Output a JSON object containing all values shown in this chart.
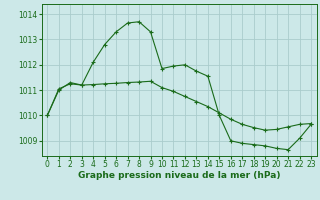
{
  "background_color": "#cce8e8",
  "grid_color": "#aacccc",
  "line_color": "#1a6b1a",
  "marker_color": "#1a6b1a",
  "title": "Graphe pression niveau de la mer (hPa)",
  "title_fontsize": 6.5,
  "tick_fontsize": 5.5,
  "xlim": [
    -0.5,
    23.5
  ],
  "ylim": [
    1008.4,
    1014.4
  ],
  "yticks": [
    1009,
    1010,
    1011,
    1012,
    1013,
    1014
  ],
  "xticks": [
    0,
    1,
    2,
    3,
    4,
    5,
    6,
    7,
    8,
    9,
    10,
    11,
    12,
    13,
    14,
    15,
    16,
    17,
    18,
    19,
    20,
    21,
    22,
    23
  ],
  "series1_x": [
    0,
    1,
    2,
    3,
    4,
    5,
    6,
    7,
    8,
    9,
    10,
    11,
    12,
    13,
    14,
    15,
    16,
    17,
    18,
    19,
    20,
    21,
    22,
    23
  ],
  "series1_y": [
    1010.0,
    1011.0,
    1011.3,
    1011.2,
    1012.1,
    1012.8,
    1013.3,
    1013.65,
    1013.7,
    1013.3,
    1011.85,
    1011.95,
    1012.0,
    1011.75,
    1011.55,
    1010.0,
    1009.0,
    1008.9,
    1008.85,
    1008.8,
    1008.7,
    1008.65,
    1009.1,
    1009.65
  ],
  "series2_x": [
    0,
    1,
    2,
    3,
    4,
    5,
    6,
    7,
    8,
    9,
    10,
    11,
    12,
    13,
    14,
    15,
    16,
    17,
    18,
    19,
    20,
    21,
    22,
    23
  ],
  "series2_y": [
    1010.0,
    1011.05,
    1011.25,
    1011.2,
    1011.22,
    1011.25,
    1011.27,
    1011.3,
    1011.32,
    1011.35,
    1011.1,
    1010.95,
    1010.75,
    1010.55,
    1010.35,
    1010.1,
    1009.85,
    1009.65,
    1009.52,
    1009.42,
    1009.45,
    1009.55,
    1009.65,
    1009.68
  ]
}
